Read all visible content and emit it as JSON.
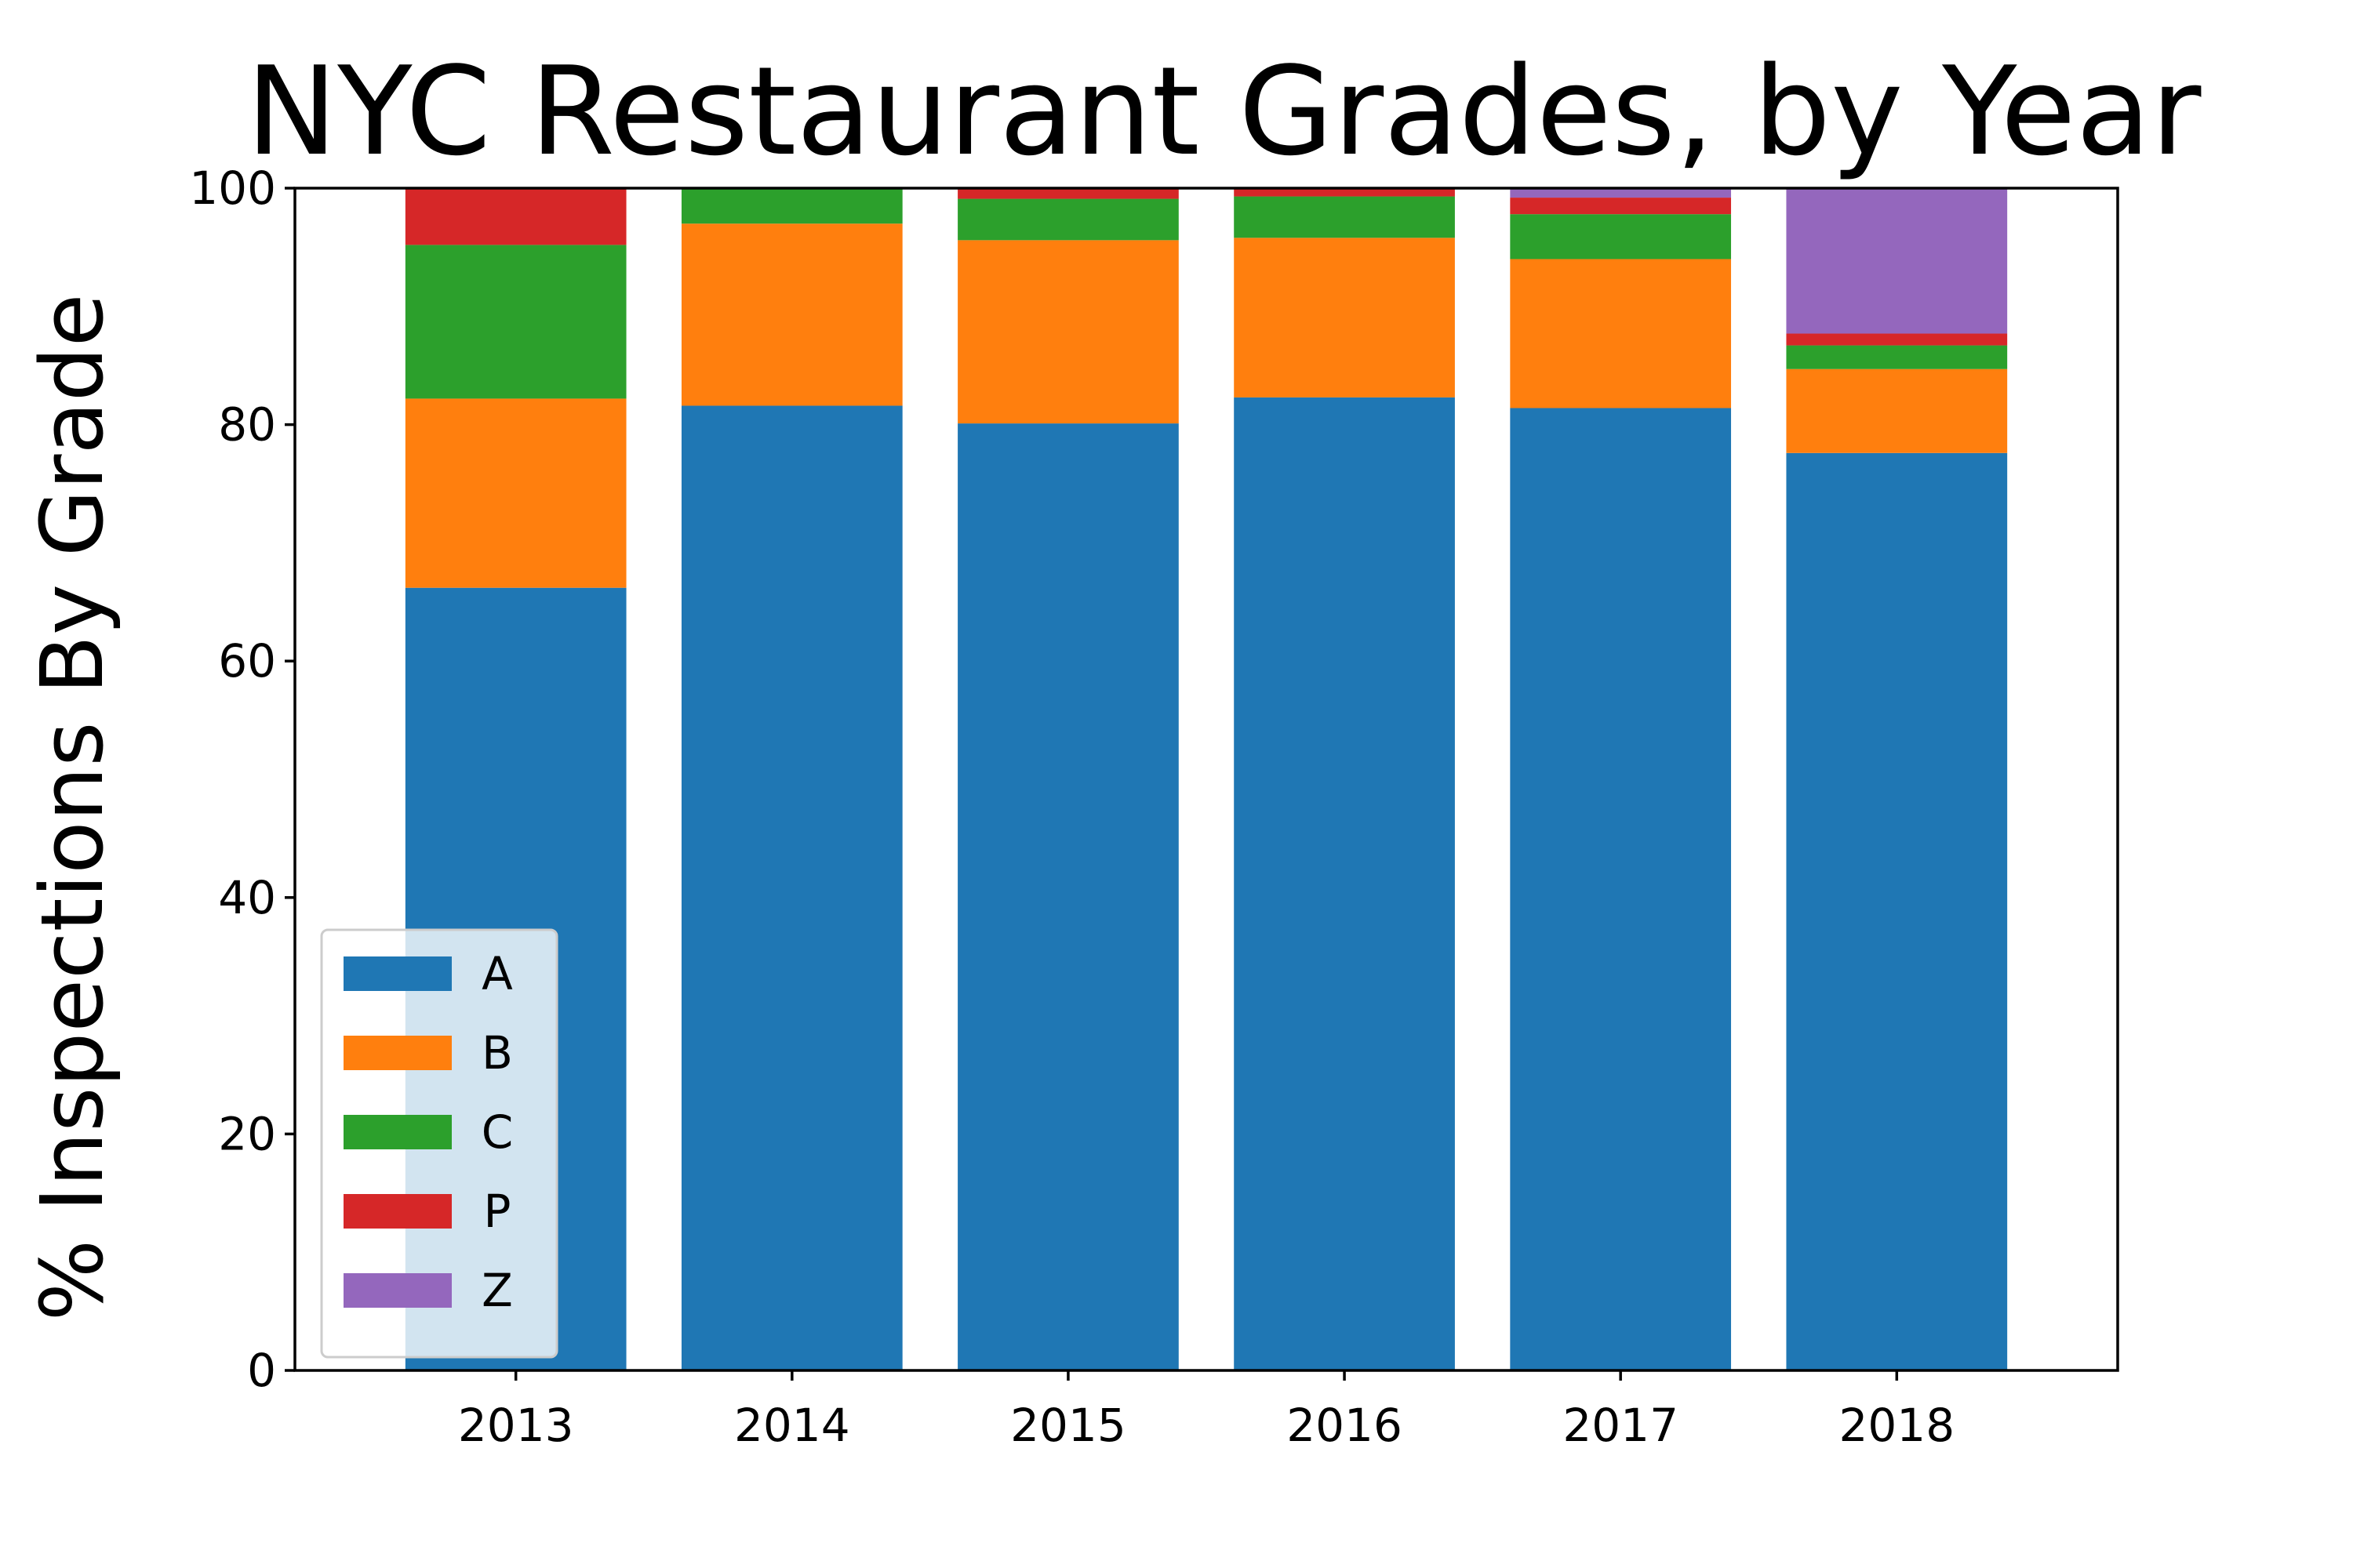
{
  "chart_data": {
    "type": "bar",
    "stacked": true,
    "title": "NYC Restaurant Grades, by Year",
    "xlabel": "",
    "ylabel": "% Inspections By Grade",
    "ylim": [
      0,
      100
    ],
    "yticks": [
      0,
      20,
      40,
      60,
      80,
      100
    ],
    "grid": false,
    "legend_position": "lower-left",
    "categories": [
      "2013",
      "2014",
      "2015",
      "2016",
      "2017",
      "2018"
    ],
    "series": [
      {
        "name": "A",
        "color": "#1f77b4",
        "values": [
          66.2,
          81.6,
          80.1,
          82.3,
          81.4,
          77.6
        ]
      },
      {
        "name": "B",
        "color": "#ff7f0e",
        "values": [
          16.0,
          15.4,
          15.5,
          13.5,
          12.6,
          7.1
        ]
      },
      {
        "name": "C",
        "color": "#2ca02c",
        "values": [
          13.0,
          3.0,
          3.5,
          3.5,
          3.8,
          2.0
        ]
      },
      {
        "name": "P",
        "color": "#d62728",
        "values": [
          4.8,
          0.0,
          0.9,
          0.7,
          1.4,
          1.0
        ]
      },
      {
        "name": "Z",
        "color": "#9467bd",
        "values": [
          0.0,
          0.0,
          0.0,
          0.0,
          0.8,
          12.3
        ]
      }
    ]
  }
}
